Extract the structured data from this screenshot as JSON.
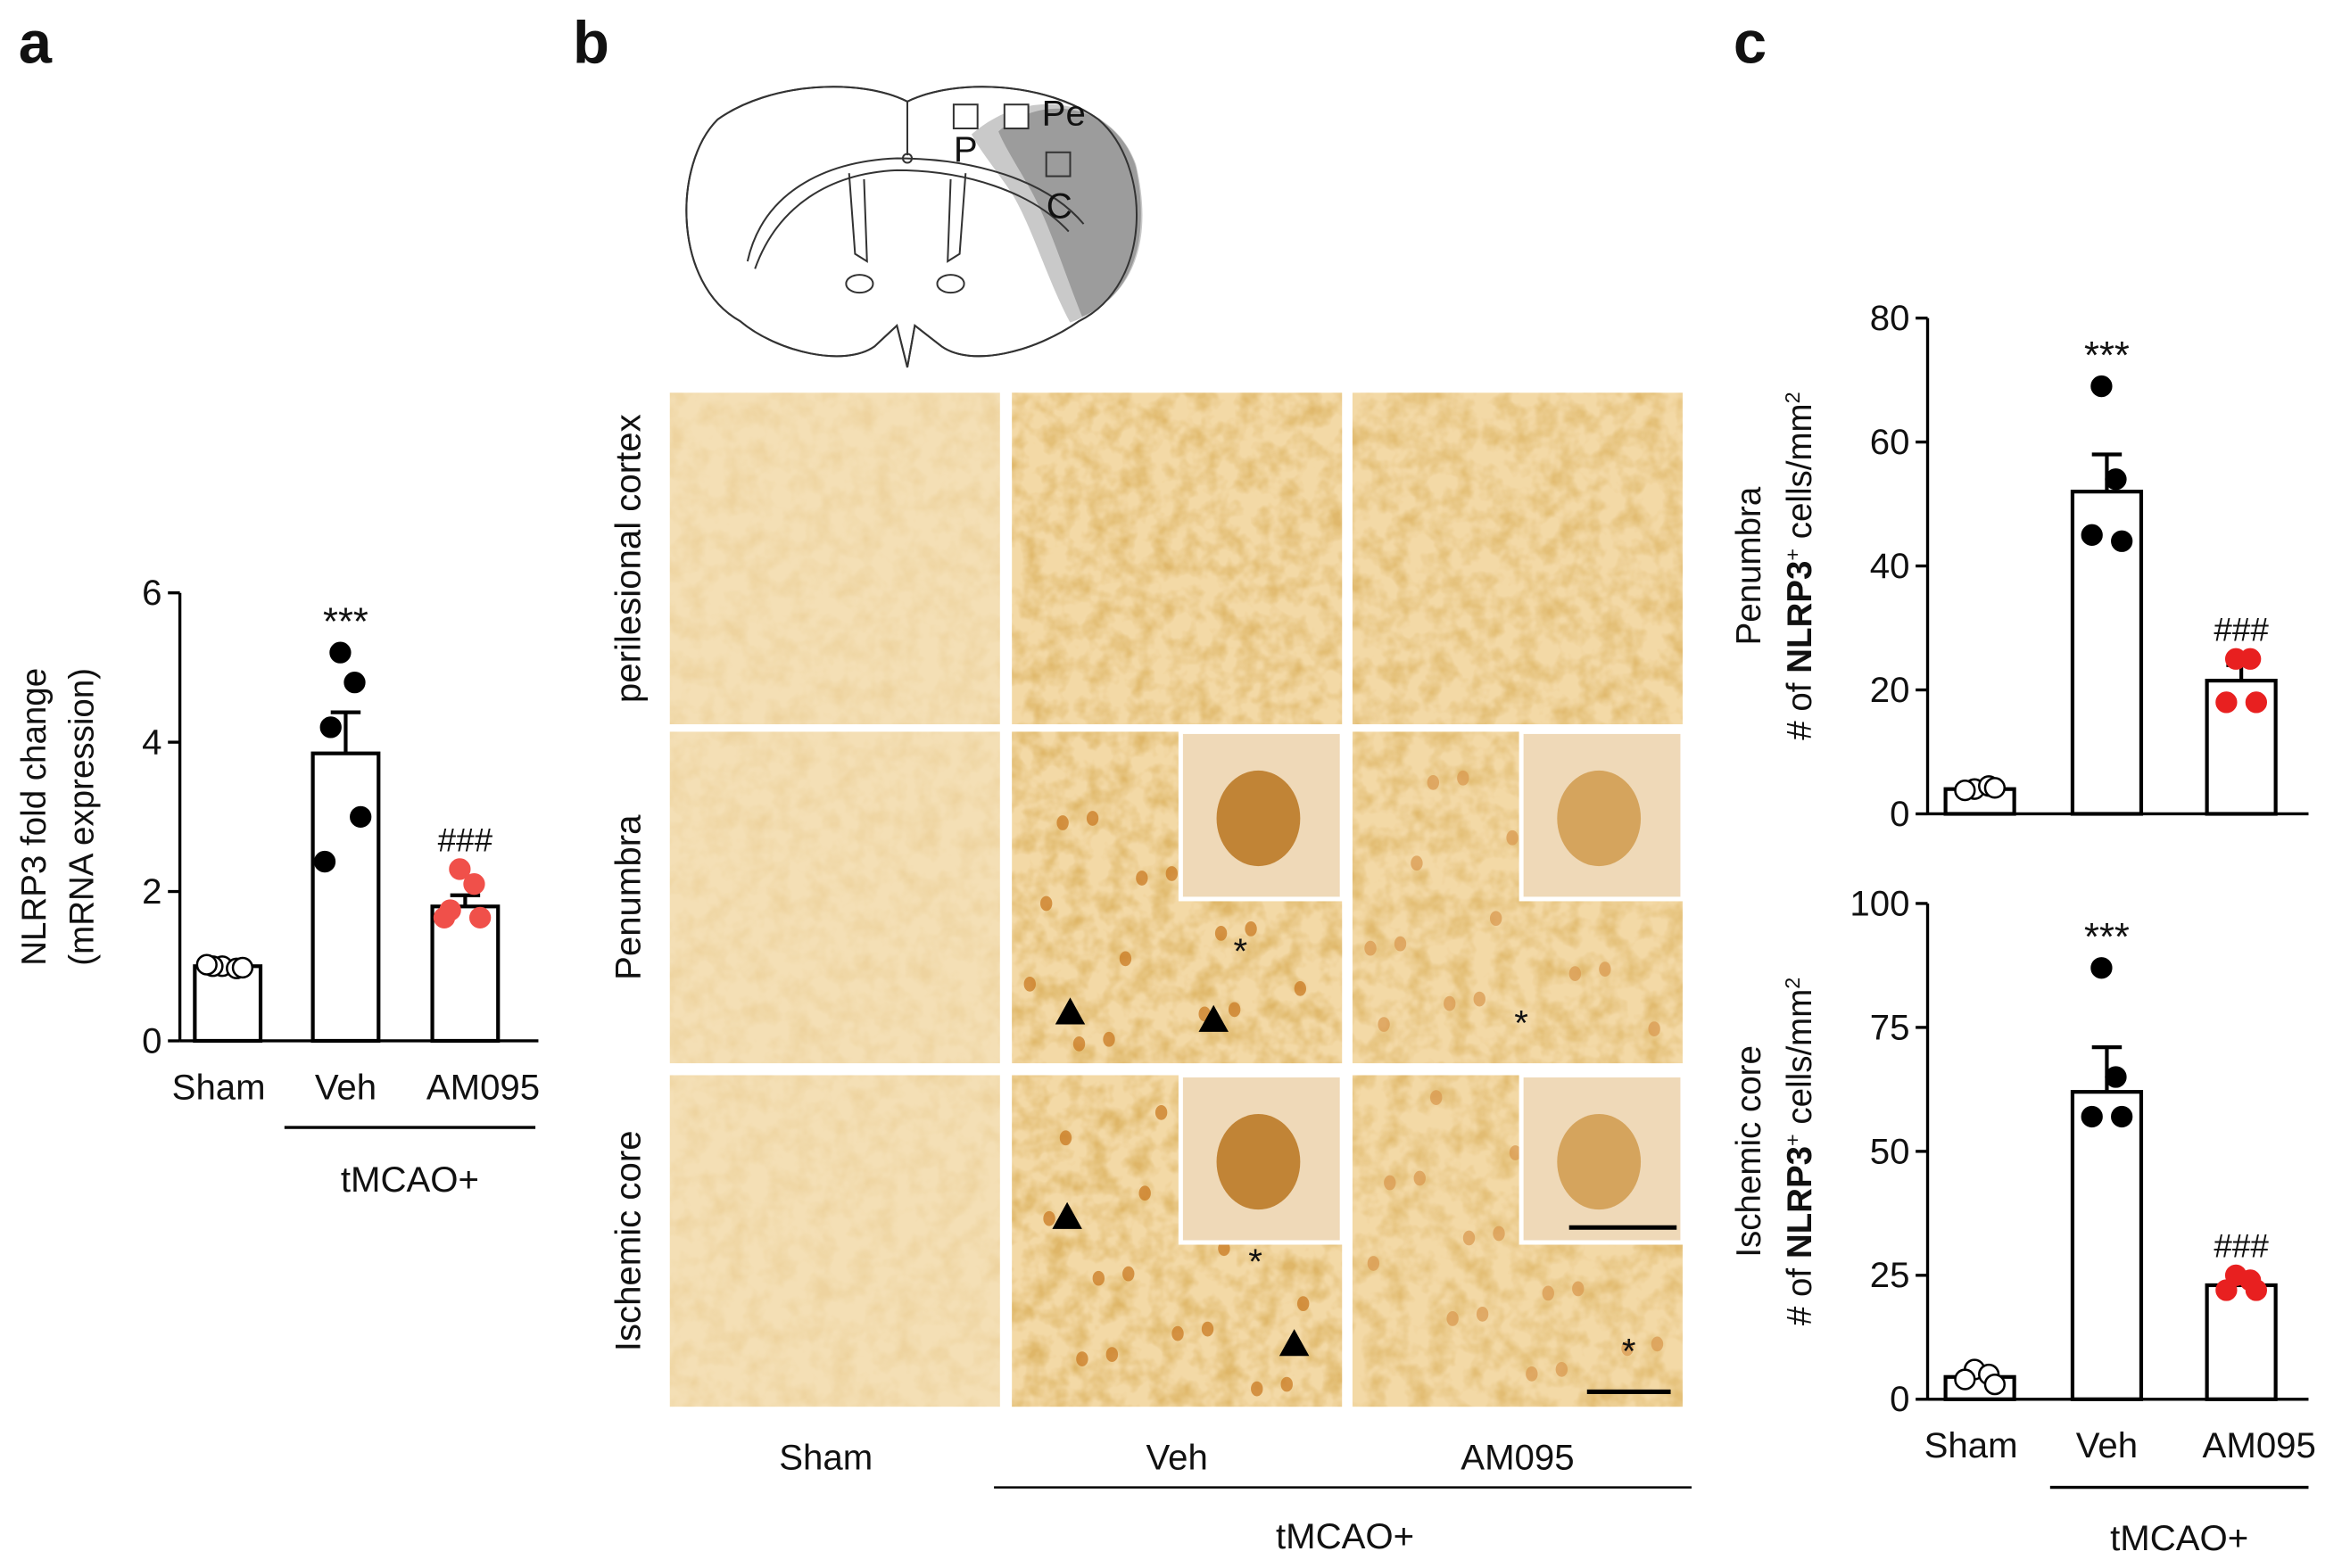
{
  "panel_labels": [
    "a",
    "b",
    "c"
  ],
  "chart_data": [
    {
      "type": "bar",
      "categories": [
        "Sham",
        "Veh",
        "AM095"
      ],
      "values": [
        1.0,
        3.85,
        1.8
      ],
      "errors": [
        0.03,
        0.55,
        0.15
      ],
      "points": [
        [
          1.0,
          0.97,
          1.0,
          0.98,
          1.02
        ],
        [
          5.2,
          4.8,
          4.2,
          3.0,
          2.4
        ],
        [
          2.3,
          2.1,
          1.75,
          1.65,
          1.65
        ]
      ],
      "point_fill": [
        "#ffffff",
        "#000000",
        "#f0504a"
      ],
      "point_stroke": [
        "#000000",
        "#000000",
        "#f0504a"
      ],
      "annotations": [
        null,
        "***",
        "###"
      ],
      "annotation_colors": [
        null,
        "#222222",
        "#e8302c"
      ],
      "group_label": "tMCAO+",
      "ylabel": [
        "NLRP3 fold change",
        "(mRNA expression)"
      ],
      "ylim": [
        0,
        6
      ],
      "yticks": [
        0,
        2,
        4,
        6
      ],
      "bar_color": "#ffffff",
      "edge_color": "#000000"
    },
    {
      "type": "bar",
      "categories": [
        null,
        null,
        null
      ],
      "values": [
        4,
        52,
        21.5
      ],
      "errors": [
        1,
        6,
        2.5
      ],
      "points": [
        [
          4,
          4.5,
          3.8,
          4.2
        ],
        [
          69,
          54,
          45,
          44
        ],
        [
          25,
          25,
          18,
          18
        ]
      ],
      "point_fill": [
        "#ffffff",
        "#000000",
        "#e82020"
      ],
      "point_stroke": [
        "#000000",
        "#000000",
        "#e82020"
      ],
      "annotations": [
        null,
        "***",
        "###"
      ],
      "annotation_colors": [
        null,
        "#222222",
        "#e8302c"
      ],
      "ylabel": [
        "Penumbra",
        [
          {
            "text": "# of "
          },
          {
            "text": "NLRP3",
            "bold": true
          },
          {
            "text": "+",
            "sup": true
          },
          {
            "text": " cells/mm"
          },
          {
            "text": "2",
            "sup": true
          }
        ]
      ],
      "ylim": [
        0,
        80
      ],
      "yticks": [
        0,
        20,
        40,
        60,
        80
      ],
      "bar_color": "#ffffff",
      "edge_color": "#000000"
    },
    {
      "type": "bar",
      "categories": [
        "Sham",
        "Veh",
        "AM095"
      ],
      "values": [
        4.5,
        62,
        23
      ],
      "errors": [
        1,
        9,
        1.5
      ],
      "points": [
        [
          6,
          5,
          4,
          3
        ],
        [
          87,
          65,
          57,
          57
        ],
        [
          25,
          24,
          22,
          22
        ]
      ],
      "point_fill": [
        "#ffffff",
        "#000000",
        "#e82020"
      ],
      "point_stroke": [
        "#000000",
        "#000000",
        "#e82020"
      ],
      "annotations": [
        null,
        "***",
        "###"
      ],
      "annotation_colors": [
        null,
        "#222222",
        "#e8302c"
      ],
      "group_label": "tMCAO+",
      "ylabel": [
        "Ischemic core",
        [
          {
            "text": "# of "
          },
          {
            "text": "NLRP3",
            "bold": true
          },
          {
            "text": "+",
            "sup": true
          },
          {
            "text": " cells/mm"
          },
          {
            "text": "2",
            "sup": true
          }
        ]
      ],
      "ylim": [
        0,
        100
      ],
      "yticks": [
        0,
        25,
        50,
        75,
        100
      ],
      "bar_color": "#ffffff",
      "edge_color": "#000000"
    }
  ],
  "micrograph": {
    "region_labels": [
      "P",
      "Pe",
      "C"
    ],
    "row_labels": [
      "perilesional cortex",
      "Penumbra",
      "Ischemic core"
    ],
    "column_labels": [
      "Sham",
      "Veh",
      "AM095"
    ],
    "group_label": "tMCAO+",
    "cell_marker": "*"
  }
}
